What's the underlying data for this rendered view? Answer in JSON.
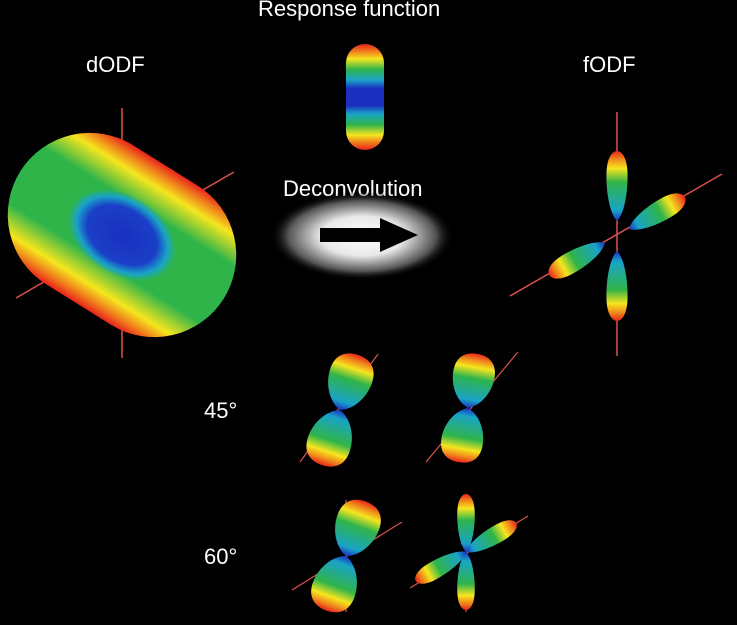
{
  "labels": {
    "response": "Response function",
    "dodf": "dODF",
    "fodf": "fODF",
    "deconvolution": "Deconvolution",
    "angle45": "45°",
    "angle60": "60°"
  },
  "colors": {
    "background": "#000000",
    "axis": "#d9534f",
    "peak_red": "#e8231c",
    "orange": "#f08a1c",
    "yellow": "#f5e61e",
    "green": "#2fb44a",
    "cyan": "#1aa3c7",
    "blue": "#1a2fbf",
    "arrow": "#000000"
  }
}
